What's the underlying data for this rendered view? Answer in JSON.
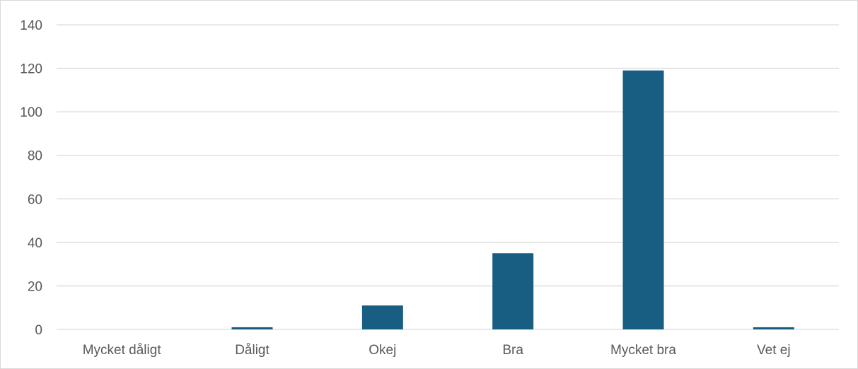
{
  "chart_data": {
    "type": "bar",
    "title": "",
    "xlabel": "",
    "ylabel": "",
    "categories": [
      "Mycket dåligt",
      "Dåligt",
      "Okej",
      "Bra",
      "Mycket bra",
      "Vet ej"
    ],
    "values": [
      0,
      1,
      11,
      35,
      119,
      1
    ],
    "ylim": [
      0,
      140
    ],
    "yticks": [
      0,
      20,
      40,
      60,
      80,
      100,
      120,
      140
    ],
    "grid": true,
    "legend": "none",
    "bar_color": "#175e82",
    "grid_color": "#d9d9d9",
    "label_color": "#595959"
  }
}
